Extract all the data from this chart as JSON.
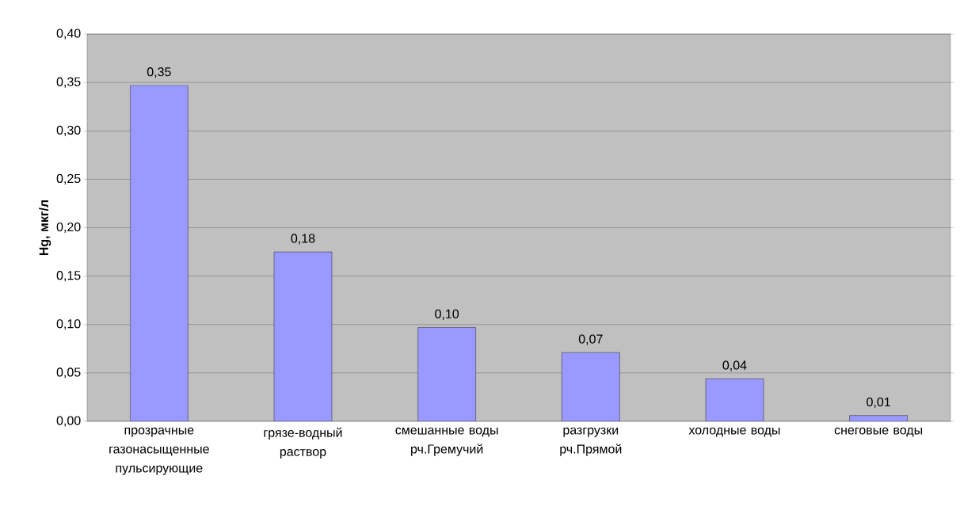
{
  "chart_data": {
    "type": "bar",
    "ylabel": "**Hg, мкг/л**",
    "categories": [
      "прозрачные газонасыщенные пульсирующие",
      "грязе-водный раствор",
      "смешанные воды рч.Гремучий",
      "разгрузки рч.Прямой",
      "холодные воды",
      "снеговые воды"
    ],
    "values": [
      0.347,
      0.175,
      0.097,
      0.071,
      0.044,
      0.006
    ],
    "value_labels": [
      "0,35",
      "0,18",
      "0,10",
      "0,07",
      "0,04",
      "0,01"
    ],
    "color": "#9999ff",
    "ylim": [
      0,
      0.4
    ],
    "yticks": [
      {
        "value": 0,
        "label": "0,00"
      },
      {
        "value": 0.05,
        "label": "0,05"
      },
      {
        "value": 0.1,
        "label": "0,10"
      },
      {
        "value": 0.15,
        "label": "0,15"
      },
      {
        "value": 0.2,
        "label": "0,20"
      },
      {
        "value": 0.25,
        "label": "0,25"
      },
      {
        "value": 0.3,
        "label": "0,30"
      },
      {
        "value": 0.35,
        "label": "0,35"
      },
      {
        "value": 0.4,
        "label": "0,40"
      }
    ],
    "grid": "y"
  }
}
